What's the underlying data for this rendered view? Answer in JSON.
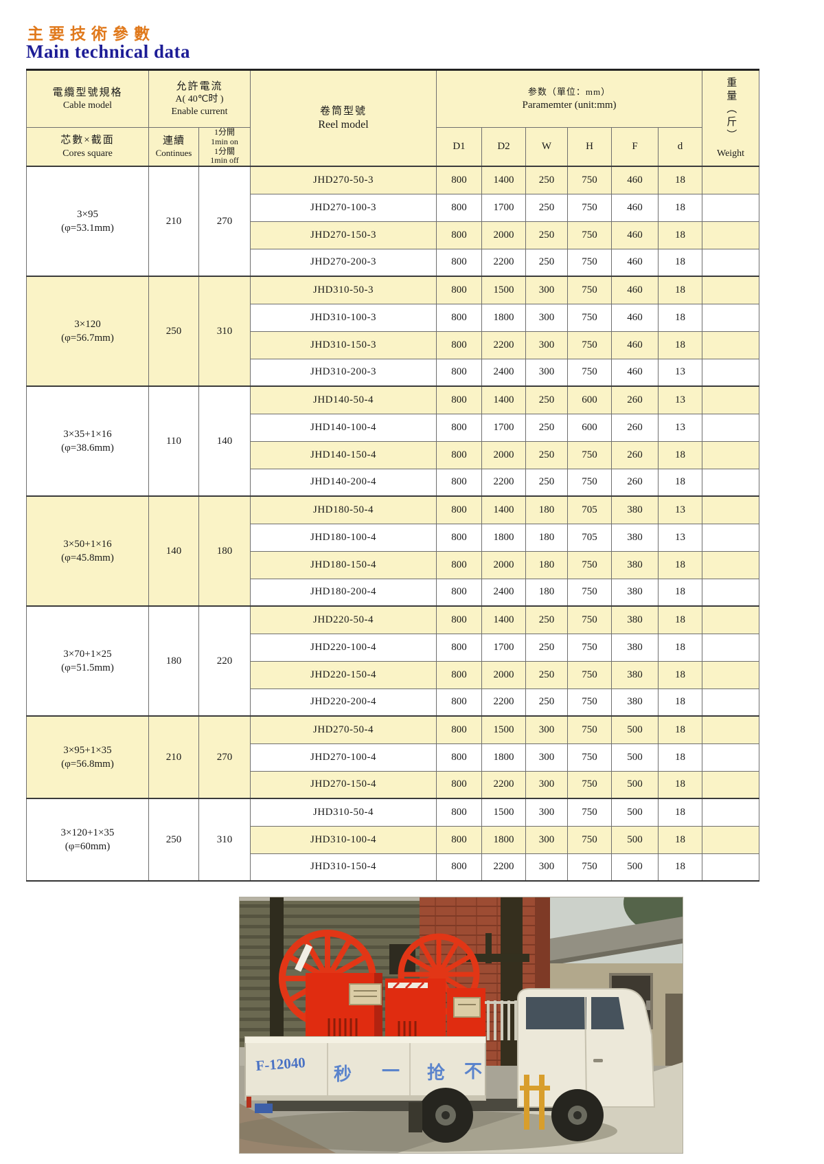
{
  "page": {
    "title_zh": "主要技術參數",
    "title_en": "Main technical data"
  },
  "colors": {
    "accent_orange": "#e0791c",
    "accent_navy": "#1d1d96",
    "table_yellow": "#faf3c6",
    "reel_red": "#e23616",
    "slogan_blue": "#5b84cc"
  },
  "table": {
    "header": {
      "cable_zh": "電纜型號規格",
      "cable_en": "Cable model",
      "cores_zh": "芯數×截面",
      "cores_en": "Cores square",
      "current_zh": "允許電流",
      "current_a": "A( 40℃时 )",
      "current_en": "Enable current",
      "cont_zh": "連續",
      "cont_en": "Continues",
      "on_zh": "1分開",
      "on_en": "1min on",
      "off_zh": "1分關",
      "off_en": "1min off",
      "reel_zh": "卷筒型號",
      "reel_en": "Reel model",
      "param_zh": "参数（單位：mm）",
      "param_en": "Paramemter (unit:mm)",
      "dims": [
        "D1",
        "D2",
        "W",
        "H",
        "F",
        "d"
      ],
      "weight_zh": "重量（斤）",
      "weight_en": "Weight"
    },
    "groups": [
      {
        "cable": "3×95",
        "diameter": "(φ=53.1mm)",
        "continuous": "210",
        "intermittent": "270",
        "rows": [
          {
            "model": "JHD270-50-3",
            "values": [
              "800",
              "1400",
              "250",
              "750",
              "460",
              "18"
            ]
          },
          {
            "model": "JHD270-100-3",
            "values": [
              "800",
              "1700",
              "250",
              "750",
              "460",
              "18"
            ]
          },
          {
            "model": "JHD270-150-3",
            "values": [
              "800",
              "2000",
              "250",
              "750",
              "460",
              "18"
            ]
          },
          {
            "model": "JHD270-200-3",
            "values": [
              "800",
              "2200",
              "250",
              "750",
              "460",
              "18"
            ]
          }
        ]
      },
      {
        "cable": "3×120",
        "diameter": "(φ=56.7mm)",
        "continuous": "250",
        "intermittent": "310",
        "rows": [
          {
            "model": "JHD310-50-3",
            "values": [
              "800",
              "1500",
              "300",
              "750",
              "460",
              "18"
            ]
          },
          {
            "model": "JHD310-100-3",
            "values": [
              "800",
              "1800",
              "300",
              "750",
              "460",
              "18"
            ]
          },
          {
            "model": "JHD310-150-3",
            "values": [
              "800",
              "2200",
              "300",
              "750",
              "460",
              "18"
            ]
          },
          {
            "model": "JHD310-200-3",
            "values": [
              "800",
              "2400",
              "300",
              "750",
              "460",
              "13"
            ]
          }
        ]
      },
      {
        "cable": "3×35+1×16",
        "diameter": "(φ=38.6mm)",
        "continuous": "110",
        "intermittent": "140",
        "rows": [
          {
            "model": "JHD140-50-4",
            "values": [
              "800",
              "1400",
              "250",
              "600",
              "260",
              "13"
            ]
          },
          {
            "model": "JHD140-100-4",
            "values": [
              "800",
              "1700",
              "250",
              "600",
              "260",
              "13"
            ]
          },
          {
            "model": "JHD140-150-4",
            "values": [
              "800",
              "2000",
              "250",
              "750",
              "260",
              "18"
            ]
          },
          {
            "model": "JHD140-200-4",
            "values": [
              "800",
              "2200",
              "250",
              "750",
              "260",
              "18"
            ]
          }
        ]
      },
      {
        "cable": "3×50+1×16",
        "diameter": "(φ=45.8mm)",
        "continuous": "140",
        "intermittent": "180",
        "rows": [
          {
            "model": "JHD180-50-4",
            "values": [
              "800",
              "1400",
              "180",
              "705",
              "380",
              "13"
            ]
          },
          {
            "model": "JHD180-100-4",
            "values": [
              "800",
              "1800",
              "180",
              "705",
              "380",
              "13"
            ]
          },
          {
            "model": "JHD180-150-4",
            "values": [
              "800",
              "2000",
              "180",
              "750",
              "380",
              "18"
            ]
          },
          {
            "model": "JHD180-200-4",
            "values": [
              "800",
              "2400",
              "180",
              "750",
              "380",
              "18"
            ]
          }
        ]
      },
      {
        "cable": "3×70+1×25",
        "diameter": "(φ=51.5mm)",
        "continuous": "180",
        "intermittent": "220",
        "rows": [
          {
            "model": "JHD220-50-4",
            "values": [
              "800",
              "1400",
              "250",
              "750",
              "380",
              "18"
            ]
          },
          {
            "model": "JHD220-100-4",
            "values": [
              "800",
              "1700",
              "250",
              "750",
              "380",
              "18"
            ]
          },
          {
            "model": "JHD220-150-4",
            "values": [
              "800",
              "2000",
              "250",
              "750",
              "380",
              "18"
            ]
          },
          {
            "model": "JHD220-200-4",
            "values": [
              "800",
              "2200",
              "250",
              "750",
              "380",
              "18"
            ]
          }
        ]
      },
      {
        "cable": "3×95+1×35",
        "diameter": "(φ=56.8mm)",
        "continuous": "210",
        "intermittent": "270",
        "rows": [
          {
            "model": "JHD270-50-4",
            "values": [
              "800",
              "1500",
              "300",
              "750",
              "500",
              "18"
            ]
          },
          {
            "model": "JHD270-100-4",
            "values": [
              "800",
              "1800",
              "300",
              "750",
              "500",
              "18"
            ]
          },
          {
            "model": "JHD270-150-4",
            "values": [
              "800",
              "2200",
              "300",
              "750",
              "500",
              "18"
            ]
          }
        ]
      },
      {
        "cable": "3×120+1×35",
        "diameter": "(φ=60mm)",
        "continuous": "250",
        "intermittent": "310",
        "rows": [
          {
            "model": "JHD310-50-4",
            "values": [
              "800",
              "1500",
              "300",
              "750",
              "500",
              "18"
            ]
          },
          {
            "model": "JHD310-100-4",
            "values": [
              "800",
              "1800",
              "300",
              "750",
              "500",
              "18"
            ]
          },
          {
            "model": "JHD310-150-4",
            "values": [
              "800",
              "2200",
              "300",
              "750",
              "500",
              "18"
            ]
          }
        ]
      }
    ]
  },
  "photo": {
    "plate": "F-12040",
    "slogan": [
      "秒",
      "一",
      "抢",
      "不"
    ]
  }
}
